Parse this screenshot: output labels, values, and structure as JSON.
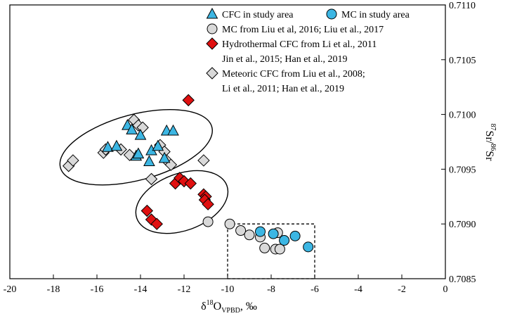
{
  "chart_data": {
    "type": "scatter",
    "xlabel_main": "δ",
    "xlabel_sup": "18",
    "xlabel_O": "O",
    "xlabel_sub": "VPBD",
    "xlabel_unit": ", ‰",
    "ylabel_sup1": "87",
    "ylabel_sr1": "Sr/",
    "ylabel_sup2": "86",
    "ylabel_sr2": "Sr",
    "xlim": [
      -20,
      0
    ],
    "ylim": [
      0.7085,
      0.711
    ],
    "xticks": [
      "-20",
      "-18",
      "-16",
      "-14",
      "-12",
      "-10",
      "-8",
      "-6",
      "-4",
      "-2",
      "0"
    ],
    "yticks": [
      "0.7085",
      "0.7090",
      "0.7095",
      "0.7100",
      "0.7105",
      "0.7110"
    ],
    "legend": [
      {
        "lines": [
          "CFC in study area"
        ],
        "marker": "triangle",
        "color": "#3cb6e3"
      },
      {
        "lines": [
          "MC in study area"
        ],
        "marker": "circle",
        "color": "#3cb6e3"
      },
      {
        "lines": [
          "MC from Liu et al, 2016; Liu et al., 2017"
        ],
        "marker": "circle",
        "color": "#d9d9d9"
      },
      {
        "lines": [
          "Hydrothermal CFC from Li et al., 2011",
          "Jin et al., 2015; Han et al., 2019"
        ],
        "marker": "diamond",
        "color": "#e01010"
      },
      {
        "lines": [
          "Meteoric CFC from Liu et al., 2008;",
          "Li et al., 2011; Han et al., 2019"
        ],
        "marker": "diamond",
        "color": "#d9d9d9"
      }
    ],
    "series": [
      {
        "name": "Meteoric CFC",
        "marker": "diamond",
        "color": "#d9d9d9",
        "points": [
          [
            -17.3,
            0.70953
          ],
          [
            -17.1,
            0.70958
          ],
          [
            -15.7,
            0.70965
          ],
          [
            -15.6,
            0.70968
          ],
          [
            -14.9,
            0.70968
          ],
          [
            -14.5,
            0.70963
          ],
          [
            -14.3,
            0.70995
          ],
          [
            -14.1,
            0.7099
          ],
          [
            -13.9,
            0.70988
          ],
          [
            -13.5,
            0.70941
          ],
          [
            -13.1,
            0.70972
          ],
          [
            -12.9,
            0.70966
          ],
          [
            -12.8,
            0.70958
          ],
          [
            -12.6,
            0.70954
          ],
          [
            -11.1,
            0.70958
          ]
        ]
      },
      {
        "name": "CFC in study area",
        "marker": "triangle",
        "color": "#3cb6e3",
        "points": [
          [
            -15.5,
            0.7097
          ],
          [
            -15.1,
            0.70971
          ],
          [
            -14.6,
            0.7099
          ],
          [
            -14.4,
            0.70986
          ],
          [
            -14.2,
            0.70962
          ],
          [
            -14.1,
            0.70964
          ],
          [
            -14.0,
            0.70981
          ],
          [
            -13.6,
            0.70957
          ],
          [
            -13.5,
            0.70967
          ],
          [
            -13.2,
            0.70971
          ],
          [
            -12.9,
            0.7096
          ],
          [
            -12.8,
            0.70985
          ],
          [
            -12.5,
            0.70985
          ]
        ]
      },
      {
        "name": "Hydrothermal CFC",
        "marker": "diamond",
        "color": "#e01010",
        "points": [
          [
            -11.8,
            0.71013
          ],
          [
            -12.4,
            0.70937
          ],
          [
            -12.2,
            0.70942
          ],
          [
            -12.0,
            0.70939
          ],
          [
            -11.7,
            0.70937
          ],
          [
            -11.1,
            0.70927
          ],
          [
            -11.0,
            0.70925
          ],
          [
            -11.05,
            0.70922
          ],
          [
            -10.9,
            0.70918
          ],
          [
            -13.7,
            0.70912
          ],
          [
            -13.5,
            0.70904
          ],
          [
            -13.25,
            0.709
          ]
        ]
      },
      {
        "name": "MC Liu et al",
        "marker": "circle",
        "color": "#d9d9d9",
        "points": [
          [
            -10.9,
            0.70902
          ],
          [
            -9.9,
            0.709
          ],
          [
            -9.4,
            0.70894
          ],
          [
            -9.0,
            0.7089
          ],
          [
            -8.5,
            0.70888
          ],
          [
            -8.3,
            0.70878
          ],
          [
            -7.8,
            0.70877
          ],
          [
            -7.6,
            0.70877
          ],
          [
            -7.7,
            0.70892
          ]
        ]
      },
      {
        "name": "MC in study area",
        "marker": "circle",
        "color": "#3cb6e3",
        "points": [
          [
            -8.5,
            0.70893
          ],
          [
            -7.9,
            0.70891
          ],
          [
            -7.4,
            0.70885
          ],
          [
            -6.9,
            0.70889
          ],
          [
            -6.3,
            0.70879
          ]
        ]
      }
    ],
    "annotations": {
      "ellipse_upper": {
        "center": [
          -14.2,
          0.7097
        ],
        "rx": 3.6,
        "ry": 0.0003,
        "rotation_deg": -15
      },
      "ellipse_lower": {
        "center": [
          -12.1,
          0.7092
        ],
        "rx": 2.2,
        "ry": 0.00026,
        "rotation_deg": -20
      },
      "dashed_box": {
        "x": [
          -10,
          -6
        ],
        "y": [
          0.7085,
          0.709
        ]
      }
    }
  }
}
